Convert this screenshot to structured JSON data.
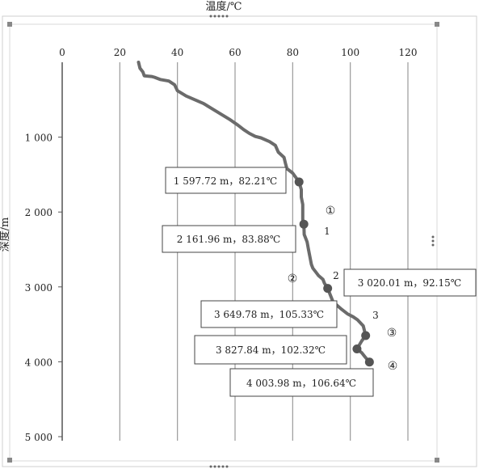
{
  "chart_data": {
    "type": "line",
    "xlabel": "温度/℃",
    "ylabel": "深度/m",
    "x_axis_position": "top",
    "y_axis_inverted": true,
    "xlim": [
      0,
      120
    ],
    "ylim": [
      0,
      5000
    ],
    "x_ticks": [
      0,
      20,
      40,
      60,
      80,
      100,
      120
    ],
    "y_ticks": [
      1000,
      2000,
      3000,
      4000,
      5000
    ],
    "x_tick_labels": [
      "0",
      "20",
      "40",
      "60",
      "80",
      "100",
      "120"
    ],
    "y_tick_labels": [
      "1 000",
      "2 000",
      "3 000",
      "4 000",
      "5 000"
    ],
    "grid": "vertical lines",
    "series": [
      {
        "values_temp_depth": [
          [
            26.5,
            0
          ],
          [
            27,
            80
          ],
          [
            28,
            130
          ],
          [
            28.5,
            180
          ],
          [
            31,
            190
          ],
          [
            32,
            200
          ],
          [
            34,
            230
          ],
          [
            37,
            250
          ],
          [
            39,
            300
          ],
          [
            40,
            380
          ],
          [
            43,
            450
          ],
          [
            46,
            500
          ],
          [
            49,
            550
          ],
          [
            52,
            620
          ],
          [
            55,
            690
          ],
          [
            58,
            760
          ],
          [
            61,
            840
          ],
          [
            63,
            900
          ],
          [
            65,
            950
          ],
          [
            67,
            990
          ],
          [
            69,
            1010
          ],
          [
            72,
            1060
          ],
          [
            74,
            1110
          ],
          [
            75,
            1200
          ],
          [
            77,
            1270
          ],
          [
            77.5,
            1350
          ],
          [
            78,
            1420
          ],
          [
            80,
            1480
          ],
          [
            82.21,
            1597.72
          ],
          [
            83,
            1700
          ],
          [
            83,
            1800
          ],
          [
            83.5,
            1900
          ],
          [
            83.5,
            2000
          ],
          [
            83.5,
            2100
          ],
          [
            83.88,
            2161.96
          ],
          [
            84,
            2300
          ],
          [
            85,
            2400
          ],
          [
            85.5,
            2500
          ],
          [
            86,
            2600
          ],
          [
            86.5,
            2700
          ],
          [
            87,
            2750
          ],
          [
            88,
            2800
          ],
          [
            89,
            2850
          ],
          [
            90.5,
            2900
          ],
          [
            91,
            2950
          ],
          [
            92.15,
            3020.01
          ],
          [
            94,
            3200
          ],
          [
            97,
            3300
          ],
          [
            99,
            3360
          ],
          [
            101,
            3400
          ],
          [
            102.5,
            3440
          ],
          [
            104.5,
            3520
          ],
          [
            105.33,
            3649.78
          ],
          [
            104,
            3720
          ],
          [
            102.32,
            3827.84
          ],
          [
            104,
            3880
          ],
          [
            105,
            3930
          ],
          [
            106.64,
            4003.98
          ]
        ]
      }
    ],
    "points": [
      {
        "depth": 1597.72,
        "temp": 82.21,
        "label": "1 597.72 m，82.21℃"
      },
      {
        "depth": 2161.96,
        "temp": 83.88,
        "label": "2 161.96 m，83.88℃"
      },
      {
        "depth": 3020.01,
        "temp": 92.15,
        "label": "3 020.01 m，92.15℃"
      },
      {
        "depth": 3649.78,
        "temp": 105.33,
        "label": "3 649.78 m，105.33℃"
      },
      {
        "depth": 3827.84,
        "temp": 102.32,
        "label": "3 827.84 m，102.32℃"
      },
      {
        "depth": 4003.98,
        "temp": 106.64,
        "label": "4 003.98 m，106.64℃"
      }
    ],
    "annotations": {
      "circled": [
        "①",
        "②",
        "③",
        "④"
      ],
      "numbers": [
        "1",
        "2",
        "3"
      ]
    }
  }
}
